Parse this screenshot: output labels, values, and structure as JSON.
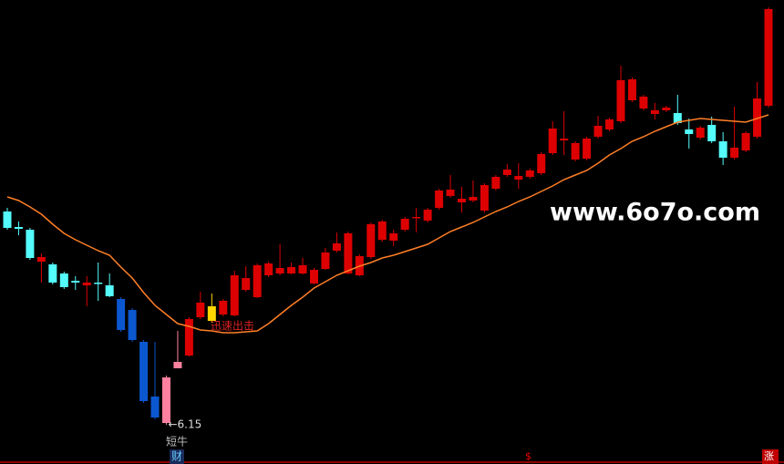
{
  "chart_data": {
    "type": "candlestick",
    "ylim": [
      5.73,
      10.81
    ],
    "open": [
      8.49,
      8.32,
      8.29,
      7.94,
      7.91,
      7.81,
      7.73,
      7.68,
      7.71,
      7.68,
      7.53,
      7.41,
      7.06,
      6.46,
      6.17,
      6.77,
      6.91,
      7.33,
      7.29,
      7.36,
      7.35,
      7.63,
      7.55,
      7.79,
      7.81,
      7.81,
      7.81,
      7.7,
      7.86,
      8.06,
      7.81,
      7.79,
      7.99,
      8.18,
      8.17,
      8.29,
      8.42,
      8.39,
      8.53,
      8.66,
      8.59,
      8.61,
      8.5,
      8.74,
      8.89,
      8.84,
      8.87,
      8.91,
      9.13,
      9.27,
      9.06,
      9.07,
      9.31,
      9.39,
      9.48,
      9.71,
      9.62,
      9.56,
      9.6,
      9.57,
      9.39,
      9.3,
      9.44,
      9.26,
      9.08,
      9.16,
      9.31,
      9.65
    ],
    "high": [
      8.53,
      8.38,
      8.31,
      8.03,
      7.93,
      7.83,
      7.78,
      7.78,
      7.93,
      7.81,
      7.55,
      7.43,
      7.08,
      7.06,
      6.69,
      7.18,
      7.33,
      7.61,
      7.59,
      7.53,
      7.84,
      7.89,
      7.92,
      7.94,
      8.13,
      7.93,
      7.98,
      7.87,
      8.09,
      8.26,
      8.27,
      8.02,
      8.37,
      8.4,
      8.29,
      8.43,
      8.53,
      8.53,
      8.74,
      8.89,
      8.76,
      8.83,
      8.8,
      8.89,
      9.01,
      9.02,
      8.96,
      9.14,
      9.48,
      9.59,
      9.26,
      9.31,
      9.54,
      9.52,
      10.09,
      9.96,
      9.77,
      9.68,
      9.65,
      9.77,
      9.51,
      9.43,
      9.53,
      9.36,
      9.64,
      9.37,
      9.91,
      10.73
    ],
    "low": [
      8.29,
      8.23,
      7.96,
      7.71,
      7.69,
      7.64,
      7.63,
      7.45,
      7.51,
      7.55,
      7.17,
      7.06,
      6.39,
      6.21,
      6.15,
      6.77,
      6.9,
      7.31,
      7.27,
      7.34,
      7.34,
      7.61,
      7.54,
      7.77,
      7.79,
      7.8,
      7.8,
      7.69,
      7.85,
      8.04,
      7.8,
      7.78,
      7.97,
      8.16,
      8.11,
      8.27,
      8.26,
      8.37,
      8.51,
      8.64,
      8.48,
      8.59,
      8.48,
      8.72,
      8.87,
      8.74,
      8.85,
      8.89,
      9.11,
      9.11,
      9.04,
      9.05,
      9.29,
      9.37,
      9.46,
      9.69,
      9.6,
      9.5,
      9.58,
      9.44,
      9.18,
      9.28,
      9.24,
      9.0,
      9.06,
      9.14,
      9.29,
      9.63
    ],
    "close": [
      8.31,
      8.3,
      7.98,
      7.99,
      7.71,
      7.66,
      7.71,
      7.71,
      7.7,
      7.56,
      7.19,
      7.08,
      6.41,
      6.23,
      6.67,
      6.84,
      7.31,
      7.49,
      7.45,
      7.51,
      7.79,
      7.76,
      7.9,
      7.92,
      7.87,
      7.88,
      7.9,
      7.85,
      8.04,
      8.14,
      8.25,
      8.0,
      8.35,
      8.38,
      8.25,
      8.41,
      8.43,
      8.51,
      8.72,
      8.73,
      8.63,
      8.65,
      8.78,
      8.87,
      8.95,
      8.88,
      8.94,
      9.12,
      9.4,
      9.29,
      9.24,
      9.29,
      9.43,
      9.5,
      9.93,
      9.94,
      9.75,
      9.6,
      9.63,
      9.46,
      9.34,
      9.41,
      9.26,
      9.08,
      9.19,
      9.35,
      9.73,
      10.71
    ],
    "colors": [
      "#54fcfc",
      "#54fcfc",
      "#54fcfc",
      "#dd0000",
      "#54fcfc",
      "#54fcfc",
      "#54fcfc",
      "#dd0000",
      "#54fcfc",
      "#54fcfc",
      "#0b57d0",
      "#0b57d0",
      "#0b57d0",
      "#0b57d0",
      "#ff809f",
      "#ff809f",
      "#dd0000",
      "#dd0000",
      "#ffd700",
      "#dd0000",
      "#dd0000",
      "#dd0000",
      "#dd0000",
      "#dd0000",
      "#dd0000",
      "#dd0000",
      "#dd0000",
      "#dd0000",
      "#dd0000",
      "#dd0000",
      "#dd0000",
      "#dd0000",
      "#dd0000",
      "#dd0000",
      "#dd0000",
      "#dd0000",
      "#dd0000",
      "#dd0000",
      "#dd0000",
      "#dd0000",
      "#dd0000",
      "#dd0000",
      "#dd0000",
      "#dd0000",
      "#dd0000",
      "#dd0000",
      "#dd0000",
      "#dd0000",
      "#dd0000",
      "#dd0000",
      "#dd0000",
      "#dd0000",
      "#dd0000",
      "#dd0000",
      "#dd0000",
      "#dd0000",
      "#dd0000",
      "#dd0000",
      "#dd0000",
      "#54fcfc",
      "#54fcfc",
      "#dd0000",
      "#54fcfc",
      "#54fcfc",
      "#dd0000",
      "#dd0000",
      "#dd0000",
      "#dd0000"
    ],
    "ma": {
      "color": "#ff7f27",
      "values": [
        8.65,
        8.61,
        8.54,
        8.46,
        8.35,
        8.25,
        8.18,
        8.12,
        8.06,
        8.01,
        7.88,
        7.76,
        7.6,
        7.46,
        7.36,
        7.26,
        7.23,
        7.19,
        7.18,
        7.16,
        7.16,
        7.17,
        7.18,
        7.26,
        7.36,
        7.46,
        7.55,
        7.65,
        7.72,
        7.79,
        7.84,
        7.89,
        7.93,
        7.98,
        8.01,
        8.05,
        8.09,
        8.13,
        8.2,
        8.27,
        8.32,
        8.37,
        8.43,
        8.49,
        8.54,
        8.6,
        8.65,
        8.71,
        8.77,
        8.84,
        8.89,
        8.94,
        9.02,
        9.11,
        9.18,
        9.26,
        9.31,
        9.37,
        9.42,
        9.47,
        9.49,
        9.51,
        9.5,
        9.49,
        9.48,
        9.47,
        9.51,
        9.55
      ]
    },
    "annotations": {
      "signal": "迅速出击",
      "low_marker": "←6.15",
      "indicator": "短牛",
      "badge_cai": "财",
      "badge_dollar": "$",
      "badge_zhang": "涨"
    },
    "watermark": "www.6o7o.com"
  }
}
